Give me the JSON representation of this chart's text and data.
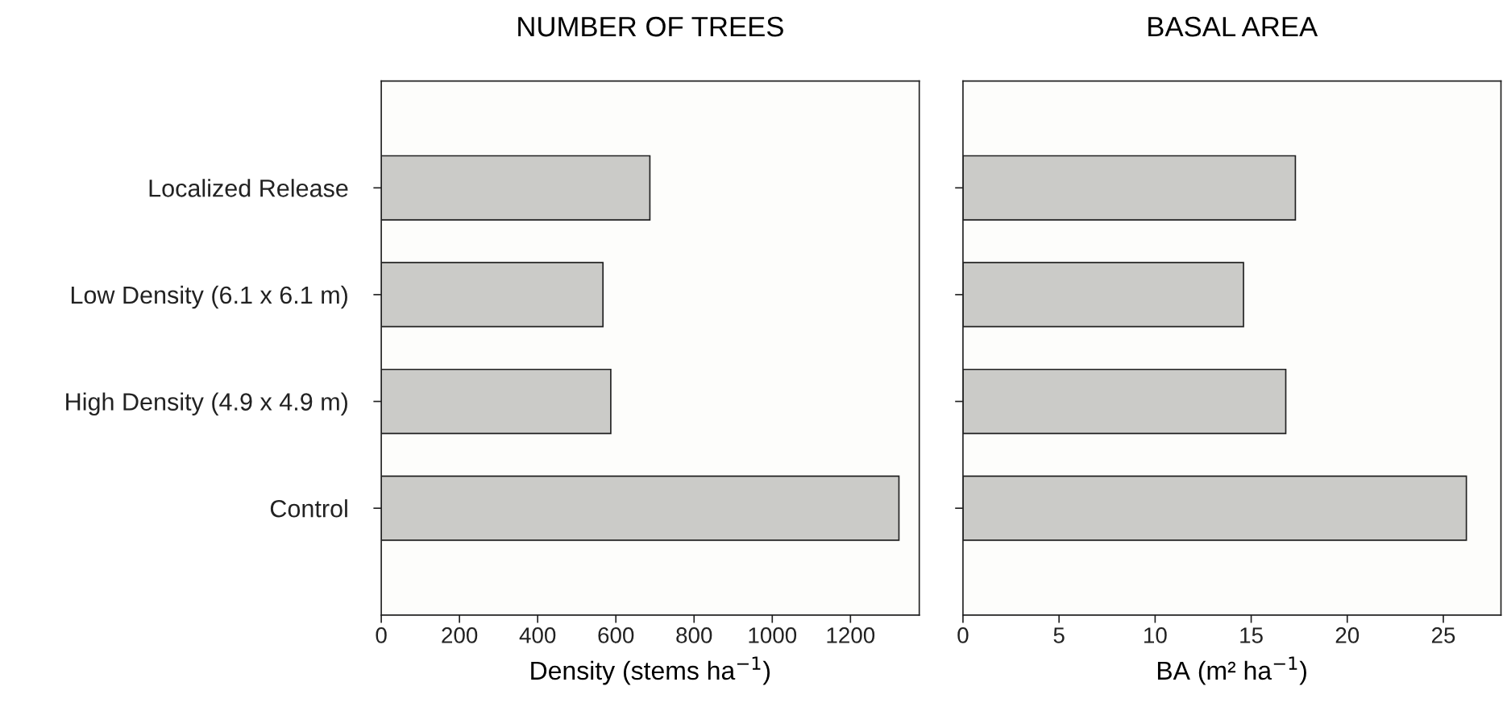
{
  "chart_data": [
    {
      "type": "bar",
      "orientation": "horizontal",
      "title": "NUMBER OF TREES",
      "xlabel": "Density (stems ha$^{−1}$)",
      "categories": [
        "Localized Release",
        "Low Density (6.1 x 6.1 m)",
        "High Density (4.9 x 4.9 m)",
        "Control"
      ],
      "values": [
        687,
        567,
        587,
        1324
      ],
      "color": "#cbcbc8",
      "xlim": [
        0,
        1376
      ],
      "xticks": [
        0,
        200,
        400,
        600,
        800,
        1000,
        1200
      ],
      "grid": false
    },
    {
      "type": "bar",
      "orientation": "horizontal",
      "title": "BASAL AREA",
      "xlabel": "BA (m² ha$^{−1}$)",
      "categories": [
        null,
        null,
        null,
        null
      ],
      "values": [
        17.3,
        14.6,
        16.8,
        26.2
      ],
      "color": "#cbcbc8",
      "xlim": [
        0,
        28
      ],
      "xticks": [
        0,
        5,
        10,
        15,
        20,
        25
      ],
      "grid": false,
      "tick_labels": "x"
    }
  ]
}
